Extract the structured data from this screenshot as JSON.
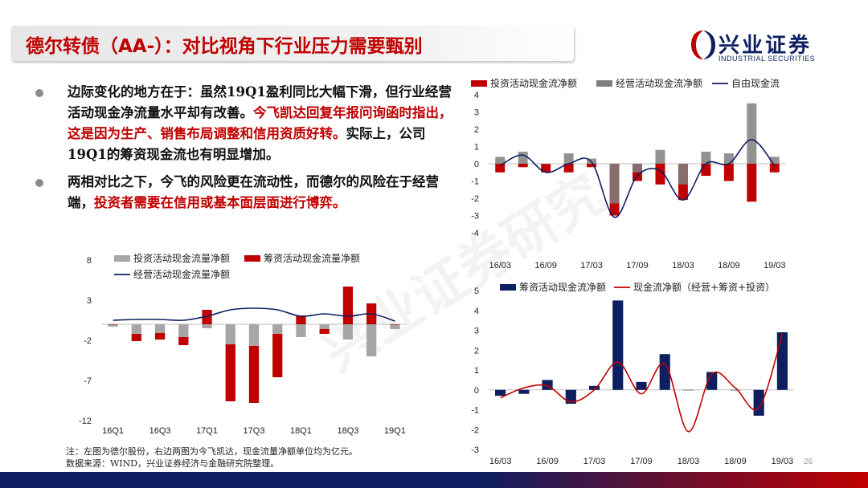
{
  "header": {
    "title": "德尔转债（AA-）：对比视角下行业压力需要甄别",
    "logo_cn": "兴业证券",
    "logo_en": "INDUSTRIAL SECURITIES"
  },
  "bullets": [
    {
      "parts": [
        {
          "text": "边际变化的地方在于：虽然19Q1盈利同比大幅下滑，但行业经营活动现金净流量水平却有改善。",
          "red": false
        },
        {
          "text": "今飞凯达回复年报问询函时指出，这是因为生产、销售布局调整和信用资质好转。",
          "red": true
        },
        {
          "text": "实际上，公司19Q1的筹资现金流也有明显增加。",
          "red": false
        }
      ]
    },
    {
      "parts": [
        {
          "text": "两相对比之下，今飞的风险更在流动性，而德尔的风险在于经营端，",
          "red": false
        },
        {
          "text": "投资者需要在信用或基本面层面进行博弈。",
          "red": true
        }
      ]
    }
  ],
  "watermark": "兴业证券研究",
  "colors": {
    "red": "#c00000",
    "gray": "#a6a6a6",
    "navy": "#0d1f60"
  },
  "chart_data": [
    {
      "type": "bar",
      "title": "",
      "categories": [
        "16Q1",
        "16Q2",
        "16Q3",
        "16Q4",
        "17Q1",
        "17Q2",
        "17Q3",
        "17Q4",
        "18Q1",
        "18Q2",
        "18Q3",
        "18Q4",
        "19Q1"
      ],
      "x_tick_labels": [
        "16Q1",
        "16Q3",
        "17Q1",
        "17Q3",
        "18Q1",
        "18Q3",
        "19Q1"
      ],
      "series": [
        {
          "name": "投资活动现金流量净额",
          "kind": "bar",
          "color": "#a6a6a6",
          "values": [
            -0.3,
            -1.2,
            -1.1,
            -1.6,
            -0.5,
            -2.5,
            -2.7,
            -1.2,
            -1.6,
            -0.6,
            -1.9,
            -4.0,
            -0.6
          ]
        },
        {
          "name": "筹资活动现金流量净额",
          "kind": "bar",
          "color": "#c00000",
          "values": [
            0.0,
            -0.9,
            -0.8,
            -1.0,
            1.8,
            -7.1,
            -7.1,
            -5.4,
            1.1,
            -0.6,
            4.7,
            2.6,
            0.0
          ]
        },
        {
          "name": "经营活动现金流量净额",
          "kind": "line",
          "color": "#0d1f60",
          "values": [
            0.5,
            0.6,
            0.6,
            0.5,
            1.0,
            1.8,
            2.0,
            1.8,
            1.0,
            1.3,
            1.0,
            1.3,
            0.4
          ]
        }
      ],
      "ylim": [
        -12,
        8
      ],
      "yticks": [
        8,
        3,
        -2,
        -7,
        -12
      ]
    },
    {
      "type": "bar",
      "title": "",
      "categories": [
        "16/03",
        "16/06",
        "16/09",
        "16/12",
        "17/03",
        "17/06",
        "17/09",
        "17/12",
        "18/03",
        "18/06",
        "18/09",
        "18/12",
        "19/03"
      ],
      "x_tick_labels": [
        "16/03",
        "16/09",
        "17/03",
        "17/09",
        "18/03",
        "18/09",
        "19/03"
      ],
      "series": [
        {
          "name": "投资活动现金流净额",
          "kind": "bar",
          "color": "#c00000",
          "values": [
            -0.5,
            -0.2,
            -0.5,
            -0.5,
            -0.2,
            -3.0,
            -1.0,
            -1.2,
            -2.1,
            -0.7,
            -1.0,
            -2.2,
            -0.5
          ]
        },
        {
          "name": "经营活动现金流净额",
          "kind": "bar",
          "color": "#7f7f7f",
          "values": [
            0.4,
            0.7,
            0.0,
            0.6,
            0.3,
            -2.3,
            -0.5,
            0.8,
            -1.2,
            0.7,
            0.6,
            3.5,
            0.4
          ]
        },
        {
          "name": "自由现金流",
          "kind": "line",
          "color": "#0d1f60",
          "values": [
            -0.1,
            0.5,
            -0.5,
            0.0,
            0.1,
            -3.1,
            -0.7,
            -0.4,
            -2.1,
            0.0,
            0.0,
            1.4,
            -0.1
          ]
        }
      ],
      "ylim": [
        -4,
        4
      ],
      "yticks": [
        4,
        3,
        2,
        1,
        0,
        -1,
        -2,
        -3,
        -4
      ]
    },
    {
      "type": "bar",
      "title": "",
      "categories": [
        "16/03",
        "16/06",
        "16/09",
        "16/12",
        "17/03",
        "17/06",
        "17/09",
        "17/12",
        "18/03",
        "18/06",
        "18/09",
        "18/12",
        "19/03"
      ],
      "x_tick_labels": [
        "16/03",
        "16/09",
        "17/03",
        "17/09",
        "18/03",
        "18/09",
        "19/03"
      ],
      "series": [
        {
          "name": "筹资活动现金流净额",
          "kind": "bar",
          "color": "#0d1f60",
          "values": [
            -0.3,
            -0.2,
            0.5,
            -0.7,
            0.2,
            4.5,
            0.4,
            1.8,
            0.0,
            0.9,
            0.0,
            -1.3,
            2.9
          ]
        },
        {
          "name": "现金流净额（经营+筹资+投资）",
          "kind": "line",
          "color": "#c00000",
          "values": [
            -0.4,
            0.1,
            0.2,
            -0.6,
            0.0,
            1.4,
            -0.2,
            1.3,
            -2.1,
            0.8,
            0.1,
            -0.9,
            2.8
          ]
        }
      ],
      "ylim": [
        -3,
        5
      ],
      "yticks": [
        5,
        4,
        3,
        2,
        1,
        0,
        -1,
        -2,
        -3
      ]
    }
  ],
  "notes": {
    "line1": "注：左图为德尔股份，右边两图为今飞凯达，现金流量净额单位均为亿元。",
    "line2": "数据来源：WIND，兴业证券经济与金融研究院整理。"
  },
  "page_number": "26"
}
